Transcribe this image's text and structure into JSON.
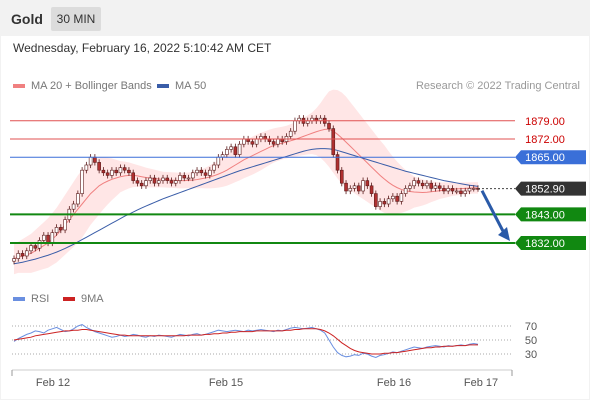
{
  "header": {
    "title": "Gold",
    "timeframe": "30 MIN"
  },
  "datetime": "Wednesday, February 16, 2022 5:10:42 AM CET",
  "legend": {
    "bb_label": "MA 20 + Bollinger Bands",
    "ma50_label": "MA 50",
    "credit": "Research © 2022 Trading Central"
  },
  "rsi_legend": {
    "rsi_label": "RSI",
    "ma_label": "9MA"
  },
  "colors": {
    "bb": "#f08080",
    "bb_fill": "#ffe0e0",
    "ma50": "#3a5da8",
    "up": "#ffffff",
    "down": "#b03030",
    "resist": "#e05050",
    "pivot": "#3a6fd8",
    "support": "#118811",
    "price": "#444444",
    "arrow": "#2a5aa8",
    "rsi": "#6a8fe0",
    "rsi_ma": "#cc2222"
  },
  "chart_data": {
    "type": "candlestick",
    "x_ticks": [
      "Feb 12",
      "Feb 15",
      "Feb 16",
      "Feb 17"
    ],
    "ylim": [
      1817,
      1887
    ],
    "levels": [
      {
        "label": "1879.00",
        "value": 1879.0,
        "kind": "resistance"
      },
      {
        "label": "1872.00",
        "value": 1872.0,
        "kind": "resistance"
      },
      {
        "label": "1865.00",
        "value": 1865.0,
        "kind": "pivot"
      },
      {
        "label": "1852.90",
        "value": 1852.9,
        "kind": "last"
      },
      {
        "label": "1843.00",
        "value": 1843.0,
        "kind": "support"
      },
      {
        "label": "1832.00",
        "value": 1832.0,
        "kind": "support"
      }
    ],
    "close": [
      1826,
      1828,
      1827,
      1829,
      1831,
      1830,
      1833,
      1835,
      1832,
      1836,
      1838,
      1837,
      1841,
      1845,
      1847,
      1851,
      1860,
      1862,
      1865,
      1863,
      1860,
      1859,
      1858,
      1860,
      1859,
      1861,
      1860,
      1859,
      1856,
      1855,
      1854,
      1856,
      1857,
      1855,
      1856,
      1857,
      1856,
      1855,
      1856,
      1858,
      1857,
      1857,
      1859,
      1860,
      1859,
      1858,
      1860,
      1862,
      1865,
      1866,
      1868,
      1869,
      1866,
      1870,
      1872,
      1871,
      1870,
      1872,
      1873,
      1872,
      1871,
      1870,
      1872,
      1871,
      1873,
      1875,
      1879,
      1880,
      1878,
      1879,
      1880,
      1879,
      1880,
      1878,
      1876,
      1866,
      1860,
      1855,
      1852,
      1853,
      1854,
      1852,
      1856,
      1854,
      1851,
      1846,
      1848,
      1847,
      1849,
      1850,
      1848,
      1851,
      1853,
      1854,
      1856,
      1855,
      1854,
      1855,
      1853,
      1854,
      1853,
      1852,
      1853,
      1852,
      1852,
      1851,
      1852,
      1853,
      1853,
      1852.9
    ],
    "ma20": [
      1826,
      1826.5,
      1827,
      1827.5,
      1828,
      1829,
      1830,
      1831,
      1832,
      1833.5,
      1835,
      1837,
      1839,
      1841,
      1843,
      1845,
      1847,
      1849,
      1851,
      1852.5,
      1854,
      1855,
      1855.8,
      1856.5,
      1857,
      1857.5,
      1857.8,
      1858,
      1858,
      1857.8,
      1857.5,
      1857.2,
      1857,
      1856.8,
      1856.6,
      1856.4,
      1856.3,
      1856.2,
      1856.1,
      1856,
      1856,
      1856.1,
      1856.2,
      1856.4,
      1856.7,
      1857,
      1857.4,
      1857.9,
      1858.5,
      1859.2,
      1860,
      1861,
      1862,
      1863,
      1864,
      1864.8,
      1865.6,
      1866.4,
      1867.2,
      1868,
      1868.8,
      1869.5,
      1870,
      1870.4,
      1870.8,
      1871.3,
      1871.8,
      1872.4,
      1873,
      1873.6,
      1874.2,
      1874.8,
      1875.3,
      1875.7,
      1875.8,
      1875,
      1873.8,
      1872.4,
      1870.8,
      1869.2,
      1867.6,
      1866,
      1864.4,
      1862.8,
      1861.2,
      1859.6,
      1858,
      1856.6,
      1855.3,
      1854.2,
      1853.3,
      1852.6,
      1852.1,
      1851.8,
      1851.6,
      1851.5,
      1851.4,
      1851.5,
      1851.7,
      1851.9,
      1852.1,
      1852.3,
      1852.5,
      1852.7,
      1852.8,
      1852.9,
      1853,
      1853.1,
      1853.2,
      1853.2
    ],
    "bb_width": [
      6,
      6,
      6.5,
      7,
      7.5,
      8,
      8.5,
      9,
      9.5,
      10,
      10.5,
      11,
      11.5,
      12,
      12.5,
      13,
      13,
      12.5,
      12,
      11.5,
      11,
      10,
      9,
      8,
      7,
      6,
      5.5,
      5,
      4.5,
      4.2,
      4,
      3.8,
      3.6,
      3.4,
      3.2,
      3,
      3,
      3,
      3,
      3,
      3,
      3,
      3.2,
      3.4,
      3.6,
      4,
      4.4,
      4.8,
      5.2,
      5.6,
      6,
      6.3,
      6.6,
      6.9,
      7.1,
      7.2,
      7.3,
      7.3,
      7.2,
      7,
      6.8,
      6.6,
      6.4,
      6.3,
      6.3,
      6.4,
      6.6,
      6.9,
      7.2,
      7.5,
      8,
      9,
      10.5,
      12.5,
      14.5,
      16,
      17,
      17.5,
      17.5,
      17,
      16.5,
      16,
      15.5,
      15,
      14.5,
      14,
      13.5,
      13,
      12,
      11,
      10,
      9,
      8,
      7,
      6,
      5.5,
      5,
      4.5,
      4,
      3.6,
      3.2,
      3,
      2.8,
      2.6,
      2.5,
      2.4,
      2.3,
      2.2,
      2.2,
      2.2
    ],
    "ma50": [
      1824,
      1824.3,
      1824.6,
      1825,
      1825.4,
      1825.8,
      1826.3,
      1826.8,
      1827.3,
      1827.9,
      1828.5,
      1829.2,
      1829.9,
      1830.7,
      1831.5,
      1832.4,
      1833.3,
      1834.2,
      1835.1,
      1836,
      1836.9,
      1837.8,
      1838.7,
      1839.6,
      1840.5,
      1841.4,
      1842.3,
      1843.1,
      1843.9,
      1844.7,
      1845.5,
      1846.2,
      1846.9,
      1847.6,
      1848.3,
      1849,
      1849.6,
      1850.2,
      1850.8,
      1851.4,
      1852,
      1852.6,
      1853.2,
      1853.8,
      1854.4,
      1855,
      1855.6,
      1856.2,
      1856.8,
      1857.4,
      1858,
      1858.6,
      1859.2,
      1859.8,
      1860.3,
      1860.8,
      1861.3,
      1861.8,
      1862.3,
      1862.8,
      1863.3,
      1863.8,
      1864.3,
      1864.8,
      1865.3,
      1865.8,
      1866.3,
      1866.8,
      1867.3,
      1867.7,
      1868,
      1868.2,
      1868.3,
      1868.3,
      1868.2,
      1868,
      1867.6,
      1867.1,
      1866.6,
      1866.1,
      1865.6,
      1865.1,
      1864.6,
      1864.1,
      1863.6,
      1863.1,
      1862.6,
      1862.1,
      1861.6,
      1861.1,
      1860.6,
      1860.1,
      1859.6,
      1859.2,
      1858.8,
      1858.4,
      1858,
      1857.6,
      1857.2,
      1856.8,
      1856.4,
      1856,
      1855.7,
      1855.4,
      1855.1,
      1854.8,
      1854.5,
      1854.2,
      1854,
      1853.8
    ],
    "rsi_levels": [
      70,
      50,
      30
    ],
    "rsi": [
      48,
      52,
      55,
      58,
      60,
      63,
      62,
      60,
      64,
      66,
      68,
      65,
      62,
      63,
      66,
      70,
      72,
      68,
      65,
      62,
      60,
      58,
      56,
      54,
      55,
      57,
      55,
      56,
      58,
      57,
      55,
      54,
      56,
      55,
      57,
      56,
      55,
      54,
      56,
      58,
      57,
      56,
      58,
      59,
      57,
      58,
      60,
      62,
      64,
      63,
      62,
      63,
      64,
      63,
      62,
      64,
      63,
      64,
      65,
      64,
      63,
      62,
      64,
      63,
      65,
      67,
      68,
      67,
      66,
      67,
      68,
      66,
      64,
      60,
      50,
      40,
      32,
      28,
      26,
      27,
      29,
      28,
      31,
      30,
      27,
      25,
      28,
      29,
      31,
      33,
      32,
      34,
      36,
      38,
      40,
      39,
      38,
      40,
      41,
      42,
      41,
      40,
      42,
      41,
      42,
      43,
      42,
      44,
      45,
      44
    ],
    "rsi_ma": [
      50,
      51,
      52,
      53,
      54,
      56,
      57,
      58,
      59,
      60,
      61,
      62,
      63,
      63,
      64,
      64,
      65,
      65,
      64,
      63,
      62,
      61,
      60,
      59,
      58,
      57,
      57,
      56,
      56,
      56,
      56,
      56,
      56,
      56,
      56,
      56,
      56,
      56,
      56,
      56,
      56,
      57,
      57,
      57,
      57,
      58,
      58,
      59,
      59,
      60,
      60,
      61,
      61,
      62,
      62,
      62,
      62,
      63,
      63,
      63,
      63,
      63,
      63,
      63,
      64,
      64,
      65,
      65,
      66,
      66,
      66,
      66,
      65,
      63,
      60,
      56,
      51,
      46,
      42,
      38,
      35,
      33,
      32,
      31,
      30,
      30,
      30,
      31,
      31,
      32,
      32,
      33,
      34,
      35,
      36,
      37,
      38,
      39,
      39,
      40,
      40,
      41,
      41,
      41,
      42,
      42,
      42,
      43,
      43,
      43
    ]
  },
  "x_labels": {
    "t0": "Feb 12",
    "t1": "Feb 15",
    "t2": "Feb 16",
    "t3": "Feb 17"
  }
}
